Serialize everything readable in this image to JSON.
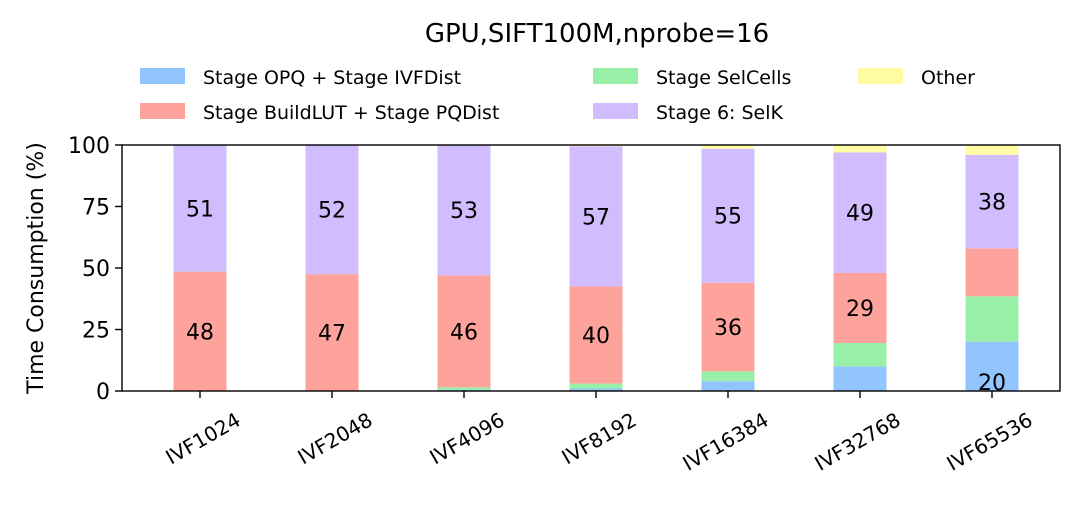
{
  "chart_data": {
    "type": "bar",
    "stacked": true,
    "title": "GPU,SIFT100M,nprobe=16",
    "xlabel": "",
    "ylabel": "Time Consumption (%)",
    "ylim": [
      0,
      100
    ],
    "yticks": [
      "0",
      "25",
      "50",
      "75",
      "100"
    ],
    "grid": false,
    "legend_position": "top",
    "categories": [
      "IVF1024",
      "IVF2048",
      "IVF4096",
      "IVF8192",
      "IVF16384",
      "IVF32768",
      "IVF65536"
    ],
    "series": [
      {
        "name": "Stage OPQ + Stage IVFDist",
        "color": "#92c5fd",
        "values": [
          0,
          0,
          0.5,
          1,
          4,
          10,
          20
        ]
      },
      {
        "name": "Stage SelCells",
        "color": "#98f0a8",
        "values": [
          0,
          0,
          1,
          2,
          4,
          9.5,
          18.5
        ]
      },
      {
        "name": "Stage BuildLUT + Stage PQDist",
        "color": "#fea39b",
        "values": [
          48.5,
          47.5,
          45.5,
          39.5,
          36,
          28.5,
          19.5
        ]
      },
      {
        "name": "Stage 6: SelK",
        "color": "#d1bdfd",
        "values": [
          51.5,
          52.5,
          53,
          57,
          54.5,
          49,
          38
        ]
      },
      {
        "name": "Other",
        "color": "#fffba3",
        "values": [
          0,
          0,
          0,
          0.5,
          1.5,
          3,
          4
        ]
      }
    ],
    "data_labels": [
      {
        "category": "IVF1024",
        "series": "Stage BuildLUT + Stage PQDist",
        "text": "48"
      },
      {
        "category": "IVF1024",
        "series": "Stage 6: SelK",
        "text": "51"
      },
      {
        "category": "IVF2048",
        "series": "Stage BuildLUT + Stage PQDist",
        "text": "47"
      },
      {
        "category": "IVF2048",
        "series": "Stage 6: SelK",
        "text": "52"
      },
      {
        "category": "IVF4096",
        "series": "Stage BuildLUT + Stage PQDist",
        "text": "46"
      },
      {
        "category": "IVF4096",
        "series": "Stage 6: SelK",
        "text": "53"
      },
      {
        "category": "IVF8192",
        "series": "Stage BuildLUT + Stage PQDist",
        "text": "40"
      },
      {
        "category": "IVF8192",
        "series": "Stage 6: SelK",
        "text": "57"
      },
      {
        "category": "IVF16384",
        "series": "Stage BuildLUT + Stage PQDist",
        "text": "36"
      },
      {
        "category": "IVF16384",
        "series": "Stage 6: SelK",
        "text": "55"
      },
      {
        "category": "IVF32768",
        "series": "Stage BuildLUT + Stage PQDist",
        "text": "29"
      },
      {
        "category": "IVF32768",
        "series": "Stage 6: SelK",
        "text": "49"
      },
      {
        "category": "IVF65536",
        "series": "Stage OPQ + Stage IVFDist",
        "text": "20"
      },
      {
        "category": "IVF65536",
        "series": "Stage 6: SelK",
        "text": "38"
      }
    ]
  }
}
